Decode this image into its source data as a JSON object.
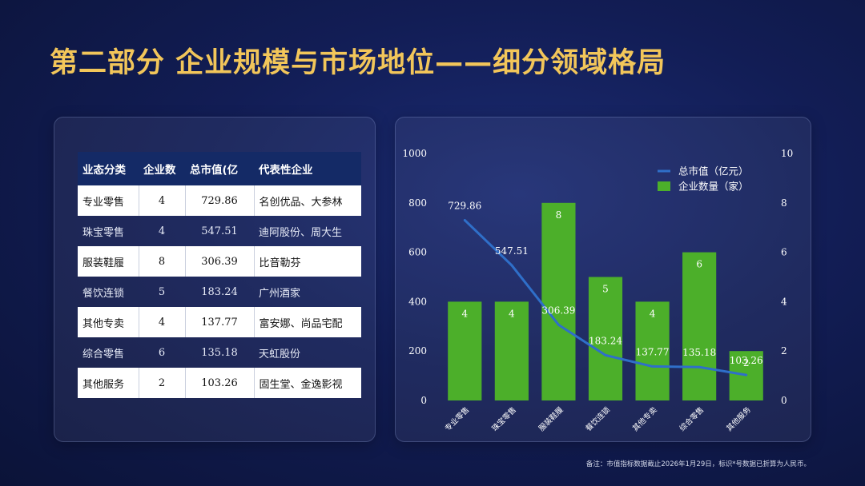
{
  "title": "第二部分 企业规模与市场地位——细分领域格局",
  "table": {
    "headers": [
      "业态分类",
      "企业数",
      "总市值(亿",
      "代表性企业"
    ],
    "rows": [
      [
        "专业零售",
        "4",
        "729.86",
        "名创优品、大参林"
      ],
      [
        "珠宝零售",
        "4",
        "547.51",
        "迪阿股份、周大生"
      ],
      [
        "服装鞋履",
        "8",
        "306.39",
        "比音勒芬"
      ],
      [
        "餐饮连锁",
        "5",
        "183.24",
        "广州酒家"
      ],
      [
        "其他专卖",
        "4",
        "137.77",
        "富安娜、尚品宅配"
      ],
      [
        "综合零售",
        "6",
        "135.18",
        "天虹股份"
      ],
      [
        "其他服务",
        "2",
        "103.26",
        "固生堂、金逸影视"
      ]
    ]
  },
  "chart_data": {
    "type": "bar",
    "categories": [
      "专业零售",
      "珠宝零售",
      "服装鞋履",
      "餐饮连锁",
      "其他专卖",
      "综合零售",
      "其他服务"
    ],
    "series": [
      {
        "name": "总市值（亿元）",
        "type": "line",
        "axis": "left",
        "color": "#2f6fc9",
        "values": [
          729.86,
          547.51,
          306.39,
          183.24,
          137.77,
          135.18,
          103.26
        ]
      },
      {
        "name": "企业数量（家）",
        "type": "bar",
        "axis": "right",
        "color": "#4caf2a",
        "values": [
          4,
          4,
          8,
          5,
          4,
          6,
          2
        ]
      }
    ],
    "y_left": {
      "range": [
        0,
        1000
      ],
      "ticks": [
        "0",
        "200",
        "400",
        "600",
        "800",
        "1000"
      ]
    },
    "y_right": {
      "range": [
        0,
        10
      ],
      "ticks": [
        "0",
        "2",
        "4",
        "6",
        "8",
        "10"
      ]
    },
    "grid": false,
    "legend": "top-right"
  },
  "footnote": "备注：市值指标数据截止2026年1月29日，标识*号数据已折算为人民币。"
}
